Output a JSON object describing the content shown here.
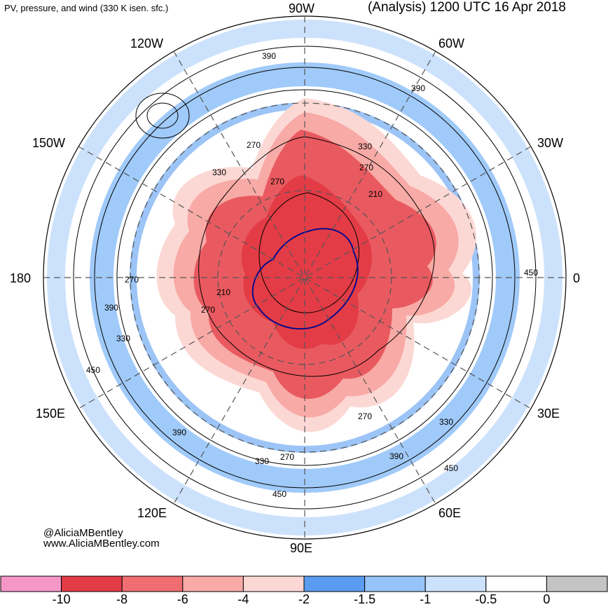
{
  "header": {
    "left_title": "PV, pressure, and wind (330 K isen. sfc.)",
    "right_title": "(Analysis) 1200 UTC 16 Apr 2018"
  },
  "longitude_labels": {
    "lon_90w": "90W",
    "lon_60w": "60W",
    "lon_30w": "30W",
    "lon_0": "0",
    "lon_30e": "30E",
    "lon_60e": "60E",
    "lon_90e": "90E",
    "lon_120e": "120E",
    "lon_150e": "150E",
    "lon_180": "180",
    "lon_150w": "150W",
    "lon_120w": "120W"
  },
  "contour_labels": [
    "390",
    "390",
    "270",
    "330",
    "270",
    "330",
    "270",
    "210",
    "210",
    "270",
    "270",
    "390",
    "330",
    "450",
    "450",
    "390",
    "330",
    "270",
    "390",
    "270",
    "330",
    "450",
    "450"
  ],
  "credits": {
    "handle": "@AliciaMBentley",
    "website": "www.AliciaMBentley.com"
  },
  "colorbar": {
    "colors": [
      "#f598c8",
      "#e33c46",
      "#f06e72",
      "#f8aaa6",
      "#fcd8d4",
      "#5a9cf0",
      "#96c4f8",
      "#cce2fc",
      "#ffffff",
      "#c4c4c4"
    ],
    "tick_labels": [
      "-10",
      "-8",
      "-6",
      "-4",
      "-2",
      "-1.5",
      "-1",
      "-0.5",
      "0"
    ]
  }
}
